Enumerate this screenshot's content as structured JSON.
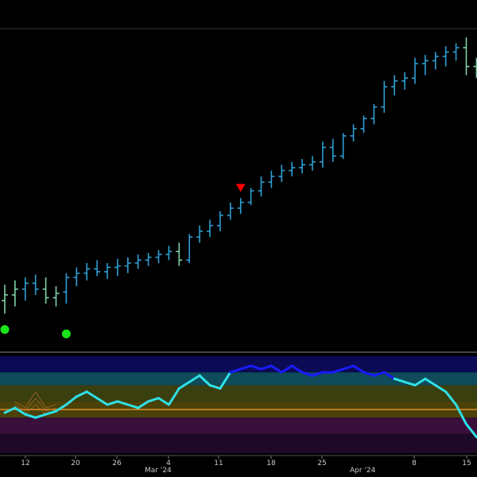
{
  "colors": {
    "background": "#000000",
    "bar_up": "#2e9fd6",
    "bar_weak": "#7fd3a8",
    "buy_marker": "#19e619",
    "sell_marker": "#ff0000",
    "osc_main": "#2ee0e6",
    "osc_strong": "#1a1aff",
    "osc_baseline": "#e08a2a",
    "osc_faint": "#c87a30",
    "divider": "#8a8a8a",
    "tick_text": "#c8c8c8"
  },
  "chart_data": [
    {
      "type": "ohlc",
      "x": [
        "Feb 8",
        "Feb 9",
        "Feb 12",
        "Feb 13",
        "Feb 14",
        "Feb 15",
        "Feb 16",
        "Feb 20",
        "Feb 21",
        "Feb 22",
        "Feb 23",
        "Feb 26",
        "Feb 27",
        "Feb 28",
        "Feb 29",
        "Mar 1",
        "Mar 4",
        "Mar 5",
        "Mar 6",
        "Mar 7",
        "Mar 8",
        "Mar 11",
        "Mar 12",
        "Mar 13",
        "Mar 14",
        "Mar 15",
        "Mar 18",
        "Mar 19",
        "Mar 20",
        "Mar 21",
        "Mar 22",
        "Mar 25",
        "Mar 26",
        "Mar 27",
        "Mar 28",
        "Apr 1",
        "Apr 2",
        "Apr 3",
        "Apr 4",
        "Apr 5",
        "Apr 8",
        "Apr 9",
        "Apr 10",
        "Apr 11",
        "Apr 12",
        "Apr 15",
        "Apr 16"
      ],
      "series": [
        {
          "values": [
            {
              "o": 14,
              "h": 25,
              "l": 5,
              "c": 18,
              "s": "weak"
            },
            {
              "o": 18,
              "h": 28,
              "l": 10,
              "c": 22,
              "s": "weak"
            },
            {
              "o": 22,
              "h": 30,
              "l": 14,
              "c": 26,
              "s": "up"
            },
            {
              "o": 26,
              "h": 32,
              "l": 18,
              "c": 22,
              "s": "up"
            },
            {
              "o": 22,
              "h": 30,
              "l": 12,
              "c": 16,
              "s": "weak"
            },
            {
              "o": 16,
              "h": 24,
              "l": 10,
              "c": 19,
              "s": "weak"
            },
            {
              "o": 20,
              "h": 33,
              "l": 12,
              "c": 30,
              "s": "up"
            },
            {
              "o": 30,
              "h": 37,
              "l": 24,
              "c": 33,
              "s": "up"
            },
            {
              "o": 33,
              "h": 40,
              "l": 28,
              "c": 36,
              "s": "up"
            },
            {
              "o": 36,
              "h": 42,
              "l": 31,
              "c": 34,
              "s": "up"
            },
            {
              "o": 34,
              "h": 40,
              "l": 29,
              "c": 37,
              "s": "up"
            },
            {
              "o": 37,
              "h": 43,
              "l": 31,
              "c": 38,
              "s": "up"
            },
            {
              "o": 38,
              "h": 44,
              "l": 33,
              "c": 40,
              "s": "up"
            },
            {
              "o": 40,
              "h": 46,
              "l": 36,
              "c": 42,
              "s": "up"
            },
            {
              "o": 42,
              "h": 47,
              "l": 38,
              "c": 44,
              "s": "up"
            },
            {
              "o": 44,
              "h": 49,
              "l": 40,
              "c": 46,
              "s": "up"
            },
            {
              "o": 46,
              "h": 52,
              "l": 42,
              "c": 48,
              "s": "up"
            },
            {
              "o": 48,
              "h": 54,
              "l": 38,
              "c": 42,
              "s": "weak"
            },
            {
              "o": 42,
              "h": 60,
              "l": 40,
              "c": 58,
              "s": "up"
            },
            {
              "o": 58,
              "h": 66,
              "l": 54,
              "c": 62,
              "s": "up"
            },
            {
              "o": 62,
              "h": 70,
              "l": 58,
              "c": 66,
              "s": "up"
            },
            {
              "o": 66,
              "h": 76,
              "l": 62,
              "c": 73,
              "s": "up"
            },
            {
              "o": 73,
              "h": 82,
              "l": 70,
              "c": 78,
              "s": "up"
            },
            {
              "o": 78,
              "h": 85,
              "l": 74,
              "c": 82,
              "s": "up"
            },
            {
              "o": 82,
              "h": 92,
              "l": 80,
              "c": 90,
              "s": "up"
            },
            {
              "o": 90,
              "h": 100,
              "l": 86,
              "c": 96,
              "s": "up"
            },
            {
              "o": 96,
              "h": 104,
              "l": 92,
              "c": 100,
              "s": "up"
            },
            {
              "o": 100,
              "h": 108,
              "l": 96,
              "c": 104,
              "s": "up"
            },
            {
              "o": 104,
              "h": 110,
              "l": 100,
              "c": 106,
              "s": "up"
            },
            {
              "o": 106,
              "h": 112,
              "l": 102,
              "c": 108,
              "s": "up"
            },
            {
              "o": 108,
              "h": 114,
              "l": 104,
              "c": 110,
              "s": "up"
            },
            {
              "o": 110,
              "h": 124,
              "l": 106,
              "c": 120,
              "s": "up"
            },
            {
              "o": 120,
              "h": 126,
              "l": 110,
              "c": 114,
              "s": "up"
            },
            {
              "o": 114,
              "h": 130,
              "l": 112,
              "c": 128,
              "s": "up"
            },
            {
              "o": 128,
              "h": 136,
              "l": 124,
              "c": 133,
              "s": "up"
            },
            {
              "o": 133,
              "h": 142,
              "l": 130,
              "c": 140,
              "s": "up"
            },
            {
              "o": 140,
              "h": 150,
              "l": 136,
              "c": 148,
              "s": "up"
            },
            {
              "o": 148,
              "h": 166,
              "l": 144,
              "c": 162,
              "s": "up"
            },
            {
              "o": 162,
              "h": 170,
              "l": 156,
              "c": 166,
              "s": "up"
            },
            {
              "o": 166,
              "h": 172,
              "l": 160,
              "c": 168,
              "s": "up"
            },
            {
              "o": 168,
              "h": 182,
              "l": 164,
              "c": 178,
              "s": "up"
            },
            {
              "o": 178,
              "h": 184,
              "l": 170,
              "c": 180,
              "s": "up"
            },
            {
              "o": 180,
              "h": 186,
              "l": 174,
              "c": 183,
              "s": "up"
            },
            {
              "o": 183,
              "h": 190,
              "l": 176,
              "c": 186,
              "s": "up"
            },
            {
              "o": 186,
              "h": 192,
              "l": 180,
              "c": 189,
              "s": "up"
            },
            {
              "o": 189,
              "h": 196,
              "l": 170,
              "c": 176,
              "s": "weak"
            },
            {
              "o": 176,
              "h": 182,
              "l": 168,
              "c": 172,
              "s": "weak"
            }
          ]
        }
      ],
      "markers": [
        {
          "type": "buy",
          "x": "Feb 8",
          "y": -6
        },
        {
          "type": "buy",
          "x": "Feb 16",
          "y": -9
        },
        {
          "type": "sell",
          "x": "Mar 13",
          "y": 92
        }
      ],
      "ylim": [
        -20,
        200
      ],
      "grid": false
    },
    {
      "type": "line",
      "series": [
        {
          "values": [
            25,
            28,
            24,
            22,
            24,
            26,
            30,
            35,
            38,
            34,
            30,
            32,
            30,
            28,
            32,
            34,
            30,
            40,
            44,
            48,
            42,
            40,
            50,
            52,
            54,
            52,
            54,
            50,
            54,
            50,
            48,
            50,
            50,
            52,
            54,
            50,
            48,
            50,
            46,
            44,
            42,
            46,
            42,
            38,
            30,
            18,
            10
          ]
        }
      ],
      "bands": [
        {
          "from": 50,
          "to": 60,
          "color": "#0b0b55"
        },
        {
          "from": 42,
          "to": 50,
          "color": "#0f4b5a"
        },
        {
          "from": 32,
          "to": 42,
          "color": "#3a3f10"
        },
        {
          "from": 22,
          "to": 32,
          "color": "#4a4208"
        },
        {
          "from": 12,
          "to": 22,
          "color": "#3a0f3c"
        },
        {
          "from": 0,
          "to": 12,
          "color": "#1e0a28"
        }
      ],
      "baseline": 27,
      "ylim": [
        0,
        60
      ]
    }
  ],
  "x_axis": {
    "ticks": [
      "12",
      "20",
      "26",
      "4",
      "11",
      "18",
      "25",
      "8",
      "15"
    ],
    "month_labels": [
      "Mar '24",
      "Apr '24"
    ]
  }
}
